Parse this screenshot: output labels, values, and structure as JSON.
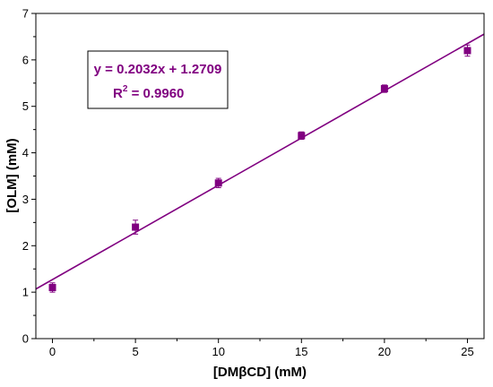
{
  "chart_data": {
    "type": "scatter",
    "xlabel": "[DMβCD] (mM)",
    "ylabel": "[OLM] (mM)",
    "xlim": [
      -1,
      26
    ],
    "ylim": [
      0,
      7
    ],
    "x_ticks": [
      "0",
      "5",
      "10",
      "15",
      "20",
      "25"
    ],
    "x_tick_values": [
      0,
      5,
      10,
      15,
      20,
      25
    ],
    "y_ticks": [
      "0",
      "1",
      "2",
      "3",
      "4",
      "5",
      "6",
      "7"
    ],
    "y_tick_values": [
      0,
      1,
      2,
      3,
      4,
      5,
      6,
      7
    ],
    "grid": false,
    "series": [
      {
        "x": [
          0,
          5,
          10,
          15,
          20,
          25
        ],
        "y": [
          1.1,
          2.4,
          3.35,
          4.37,
          5.38,
          6.2
        ],
        "error": [
          0.1,
          0.15,
          0.1,
          0.08,
          0.08,
          0.12
        ],
        "color": "#800080",
        "marker": "square"
      }
    ],
    "fit": {
      "slope": 0.2032,
      "intercept": 1.2709,
      "color": "#800080"
    },
    "annotation": {
      "equation": "y = 0.2032x + 1.2709",
      "r2_label": "R",
      "r2_exp": "2",
      "r2_value": " = 0.9960",
      "placement": "top-left",
      "color": "#800080"
    }
  }
}
